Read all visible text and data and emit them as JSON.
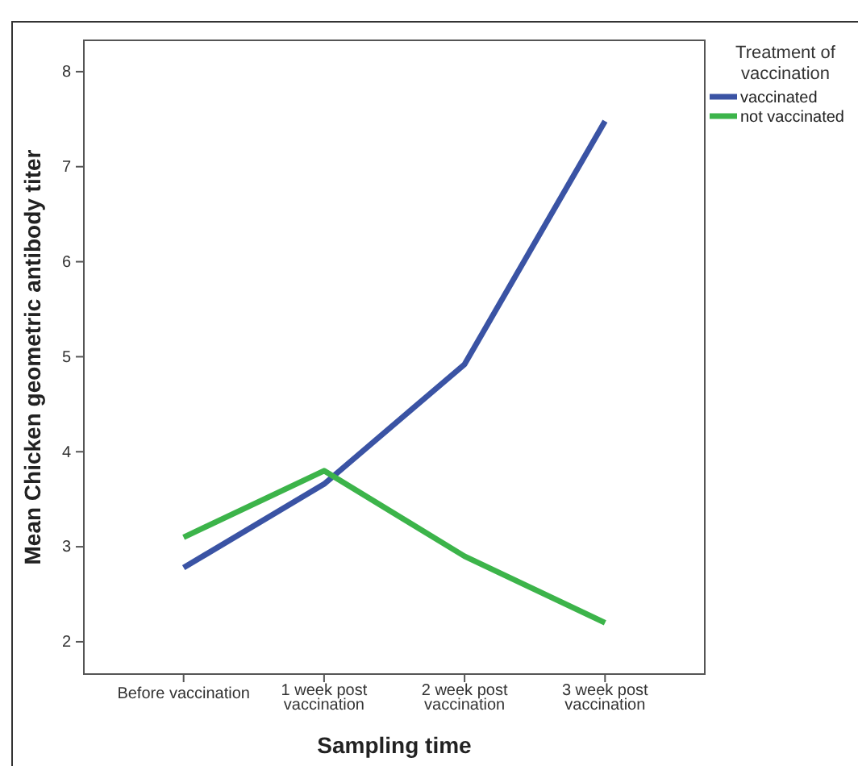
{
  "chart_data": {
    "type": "line",
    "xlabel": "Sampling time",
    "ylabel": "Mean Chicken geometric antibody titer",
    "legend_title": "Treatment of vaccination",
    "categories": [
      "Before vaccination",
      "1 week post vaccination",
      "2 week post vaccination",
      "3 week post vaccination"
    ],
    "series": [
      {
        "name": "vaccinated",
        "color": "#3a53a4",
        "values": [
          2.78,
          3.66,
          4.92,
          7.48
        ]
      },
      {
        "name": "not vaccinated",
        "color": "#3cb44a",
        "values": [
          3.1,
          3.8,
          2.9,
          2.2
        ]
      }
    ],
    "ylim": [
      1.66,
      8.33
    ],
    "yticks": [
      2,
      3,
      4,
      5,
      6,
      7,
      8
    ],
    "grid": false,
    "legend": "right",
    "marker": "none",
    "line_style": "solid"
  }
}
